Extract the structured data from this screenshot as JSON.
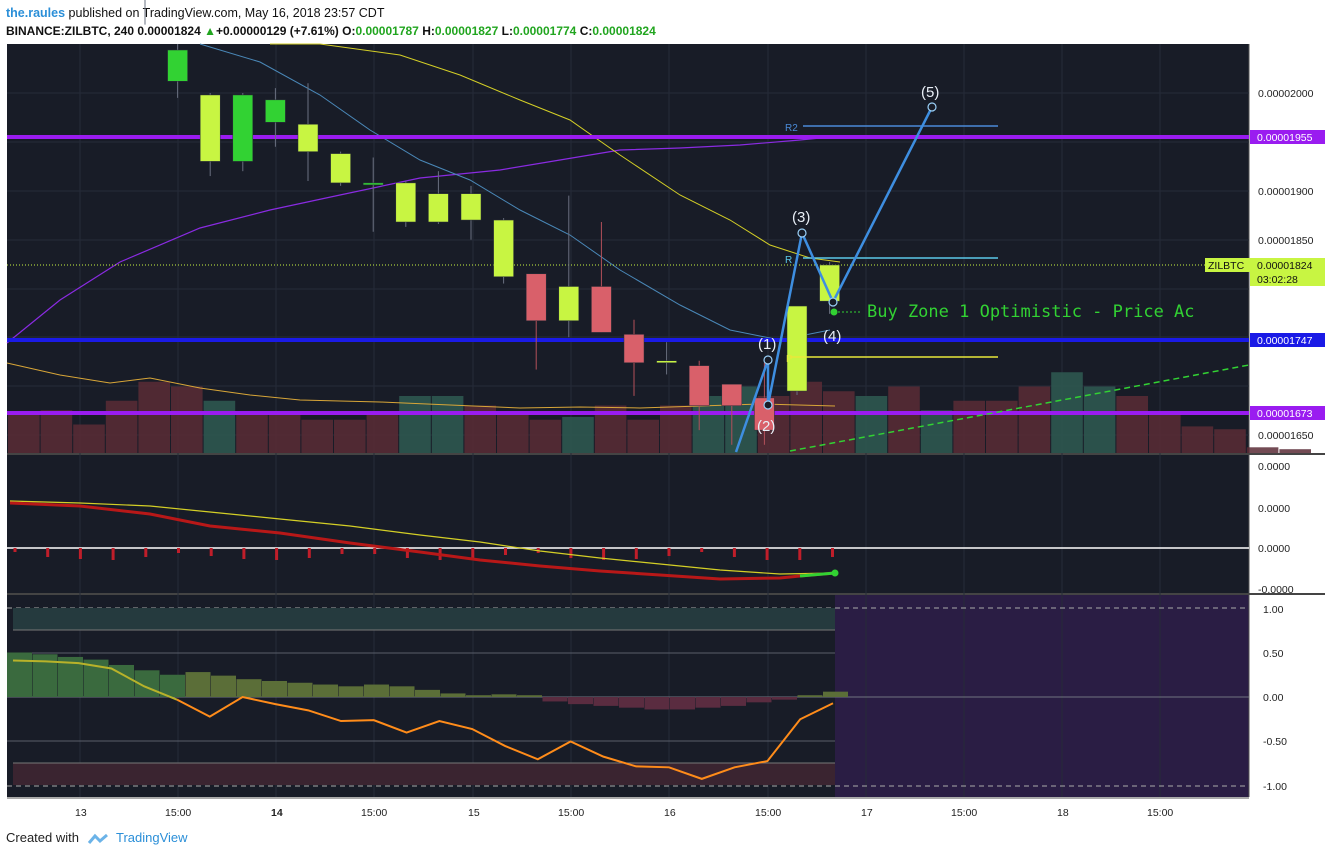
{
  "header": {
    "author": "the.raules",
    "published_text": " published on TradingView.com, May 16, 2018 23:57 CDT",
    "symbol": "BINANCE:ZILBTC, 240",
    "last": "0.00001824",
    "change": "+0.00000129 (+7.61%)",
    "o_label": "O:",
    "o": "0.00001787",
    "h_label": "H:",
    "h": "0.00001827",
    "l_label": "L:",
    "l": "0.00001774",
    "c_label": "C:",
    "c": "0.00001824"
  },
  "footer": {
    "created_with": "Created with",
    "brand": "TradingView"
  },
  "colors": {
    "panel_bg": "#181c27",
    "bull_candle": "#c8f542",
    "bull_candle_alt": "#32d233",
    "bear_candle": "#d9606a",
    "purple_level": "#9a1cf0",
    "blue_level": "#1a1ae6",
    "wave": "#3e8ee0",
    "yellow_ma": "#d4cf26",
    "purple_ma": "#8a2be2",
    "steelblue_ma": "#4a88b8"
  },
  "chart_data": [
    {
      "type": "candlestick",
      "symbol": "BINANCE:ZILBTC",
      "interval": "240",
      "y_range": [
        1.63e-05,
        2.11e-05
      ],
      "price_ticks": [
        "0.00002000",
        "0.00001900",
        "0.00001850",
        "0.00001650"
      ],
      "x_tick_labels": [
        "13",
        "15:00",
        "14",
        "15:00",
        "15",
        "15:00",
        "16",
        "15:00",
        "17",
        "15:00",
        "18",
        "15:00"
      ],
      "candles": [
        {
          "o": 2.1e-05,
          "h": 2.13e-05,
          "l": 2.07e-05,
          "c": 2.11e-05,
          "style": "bull_alt"
        },
        {
          "o": 2.012e-05,
          "h": 2.05e-05,
          "l": 1.995e-05,
          "c": 2.044e-05,
          "style": "bull_alt"
        },
        {
          "o": 1.93e-05,
          "h": 2e-05,
          "l": 1.915e-05,
          "c": 1.998e-05,
          "style": "bull"
        },
        {
          "o": 1.93e-05,
          "h": 2e-05,
          "l": 1.92e-05,
          "c": 1.998e-05,
          "style": "bull_alt"
        },
        {
          "o": 1.97e-05,
          "h": 2.005e-05,
          "l": 1.945e-05,
          "c": 1.993e-05,
          "style": "bull_alt"
        },
        {
          "o": 1.94e-05,
          "h": 2.01e-05,
          "l": 1.91e-05,
          "c": 1.968e-05,
          "style": "bull"
        },
        {
          "o": 1.908e-05,
          "h": 1.94e-05,
          "l": 1.905e-05,
          "c": 1.938e-05,
          "style": "bull"
        },
        {
          "o": 1.906e-05,
          "h": 1.934e-05,
          "l": 1.858e-05,
          "c": 1.908e-05,
          "style": "bull_alt"
        },
        {
          "o": 1.868e-05,
          "h": 1.91e-05,
          "l": 1.863e-05,
          "c": 1.908e-05,
          "style": "bull"
        },
        {
          "o": 1.868e-05,
          "h": 1.92e-05,
          "l": 1.866e-05,
          "c": 1.897e-05,
          "style": "bull"
        },
        {
          "o": 1.87e-05,
          "h": 1.905e-05,
          "l": 1.85e-05,
          "c": 1.897e-05,
          "style": "bull"
        },
        {
          "o": 1.812e-05,
          "h": 1.872e-05,
          "l": 1.805e-05,
          "c": 1.87e-05,
          "style": "bull"
        },
        {
          "o": 1.815e-05,
          "h": 1.815e-05,
          "l": 1.717e-05,
          "c": 1.767e-05,
          "style": "bear"
        },
        {
          "o": 1.767e-05,
          "h": 1.895e-05,
          "l": 1.75e-05,
          "c": 1.802e-05,
          "style": "bull"
        },
        {
          "o": 1.802e-05,
          "h": 1.868e-05,
          "l": 1.755e-05,
          "c": 1.755e-05,
          "style": "bear"
        },
        {
          "o": 1.753e-05,
          "h": 1.768e-05,
          "l": 1.69e-05,
          "c": 1.724e-05,
          "style": "bear"
        },
        {
          "o": 1.726e-05,
          "h": 1.745e-05,
          "l": 1.712e-05,
          "c": 1.724e-05,
          "style": "bull"
        },
        {
          "o": 1.721e-05,
          "h": 1.726e-05,
          "l": 1.655e-05,
          "c": 1.68e-05,
          "style": "bear"
        },
        {
          "o": 1.68e-05,
          "h": 1.702e-05,
          "l": 1.64e-05,
          "c": 1.702e-05,
          "style": "bear"
        },
        {
          "o": 1.655e-05,
          "h": 1.724e-05,
          "l": 1.64e-05,
          "c": 1.688e-05,
          "style": "bear"
        },
        {
          "o": 1.695e-05,
          "h": 1.78e-05,
          "l": 1.691e-05,
          "c": 1.782e-05,
          "style": "bull"
        },
        {
          "o": 1.787e-05,
          "h": 1.827e-05,
          "l": 1.774e-05,
          "c": 1.824e-05,
          "style": "bull"
        }
      ],
      "horizontal_levels": [
        {
          "price": 1.955e-05,
          "label": "0.00001955",
          "color": "purple"
        },
        {
          "price": 1.747e-05,
          "label": "0.00001747",
          "color": "blue"
        },
        {
          "price": 1.673e-05,
          "label": "0.00001673",
          "color": "purple"
        }
      ],
      "last_price_label": {
        "symbol": "ZILBTC",
        "price": "0.00001824",
        "countdown": "03:02:28"
      },
      "elliott_wave_labels": [
        "(1)",
        "(2)",
        "(3)",
        "(4)",
        "(5)"
      ],
      "fib_labels": [
        "R2",
        "R",
        "P"
      ],
      "annotation": "Buy Zone 1 Optimistic - Price Ac"
    },
    {
      "type": "line",
      "panel": "oscillator",
      "y_ticks": [
        "0.0000",
        "0.0000",
        "0.0000",
        "-0.0000"
      ],
      "series": [
        {
          "role": "signal",
          "color": "yellow"
        },
        {
          "role": "main",
          "color": "red"
        }
      ]
    },
    {
      "type": "area",
      "panel": "stochastic",
      "y_ticks": [
        "1.00",
        "0.50",
        "0.00",
        "-0.50",
        "-1.00"
      ],
      "line_values": [
        0.41,
        0.4,
        0.38,
        0.32,
        0.12,
        -0.03,
        -0.22,
        0.0,
        -0.08,
        -0.15,
        -0.27,
        -0.26,
        -0.4,
        -0.27,
        -0.36,
        -0.55,
        -0.7,
        -0.5,
        -0.67,
        -0.78,
        -0.79,
        -0.92,
        -0.79,
        -0.72,
        -0.25,
        -0.07
      ]
    }
  ]
}
